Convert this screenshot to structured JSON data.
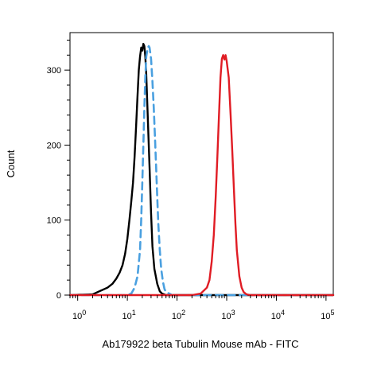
{
  "chart_data": {
    "type": "line",
    "title": "",
    "xlabel": "Ab179922 beta Tubulin Mouse mAb - FITC",
    "ylabel": "Count",
    "xscale": "log",
    "xlim": [
      0.7,
      140000
    ],
    "ylim": [
      0,
      350
    ],
    "yticks": [
      {
        "value": 0,
        "label": "0"
      },
      {
        "value": 100,
        "label": "100"
      },
      {
        "value": 200,
        "label": "200"
      },
      {
        "value": 300,
        "label": "300"
      }
    ],
    "xticks": [
      {
        "value": 1,
        "base": "10",
        "exp": "0"
      },
      {
        "value": 10,
        "base": "10",
        "exp": "1"
      },
      {
        "value": 100,
        "base": "10",
        "exp": "2"
      },
      {
        "value": 1000,
        "base": "10",
        "exp": "3"
      },
      {
        "value": 10000,
        "base": "10",
        "exp": "4"
      },
      {
        "value": 100000,
        "base": "10",
        "exp": "5"
      }
    ],
    "grid": false,
    "legend": "none",
    "series": [
      {
        "color": "#000000",
        "style": "solid",
        "x": [
          0.7,
          2,
          4,
          5,
          6,
          7,
          8,
          9,
          10,
          11,
          12,
          13,
          14,
          15,
          16,
          17,
          18,
          19,
          20,
          21,
          22,
          23,
          24,
          25,
          26,
          28,
          30,
          32,
          35,
          40,
          45,
          50,
          60,
          80,
          100,
          150,
          1000,
          140000
        ],
        "y": [
          0,
          1,
          10,
          15,
          22,
          30,
          40,
          55,
          75,
          100,
          125,
          150,
          185,
          225,
          265,
          300,
          318,
          330,
          326,
          335,
          332,
          318,
          295,
          262,
          230,
          170,
          110,
          65,
          35,
          15,
          5,
          2,
          0,
          0,
          0,
          0,
          0,
          0
        ]
      },
      {
        "color": "#4aa0e0",
        "style": "dashed",
        "x": [
          0.7,
          10,
          12,
          14,
          16,
          18,
          19,
          20,
          21,
          22,
          23,
          24,
          25,
          26,
          27,
          28,
          30,
          32,
          34,
          36,
          38,
          40,
          42,
          45,
          48,
          52,
          56,
          60,
          70,
          80,
          100,
          200,
          140000
        ],
        "y": [
          0,
          0,
          2,
          10,
          25,
          60,
          100,
          150,
          200,
          250,
          290,
          318,
          325,
          330,
          332,
          330,
          315,
          285,
          250,
          210,
          170,
          130,
          95,
          60,
          35,
          18,
          8,
          4,
          2,
          0,
          0,
          0,
          0
        ]
      },
      {
        "color": "#e01c24",
        "style": "solid",
        "x": [
          0.7,
          200,
          300,
          400,
          450,
          500,
          550,
          600,
          650,
          700,
          750,
          800,
          850,
          900,
          950,
          1000,
          1100,
          1200,
          1300,
          1400,
          1500,
          1600,
          1800,
          2000,
          2200,
          2500,
          3000,
          140000
        ],
        "y": [
          0,
          0,
          2,
          10,
          20,
          45,
          80,
          130,
          185,
          240,
          290,
          315,
          320,
          314,
          320,
          312,
          290,
          240,
          190,
          140,
          95,
          60,
          25,
          10,
          4,
          1,
          0,
          0
        ]
      }
    ]
  }
}
